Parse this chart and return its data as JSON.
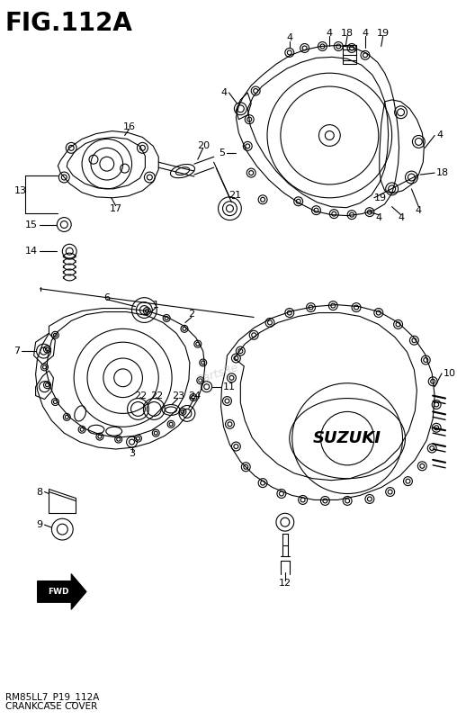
{
  "title": "FIG.112A",
  "subtitle1": "RM85LL7_P19_112A",
  "subtitle2": "CRANKCASE COVER",
  "bg_color": "#ffffff",
  "fig_width": 5.08,
  "fig_height": 8.0,
  "dpi": 100
}
